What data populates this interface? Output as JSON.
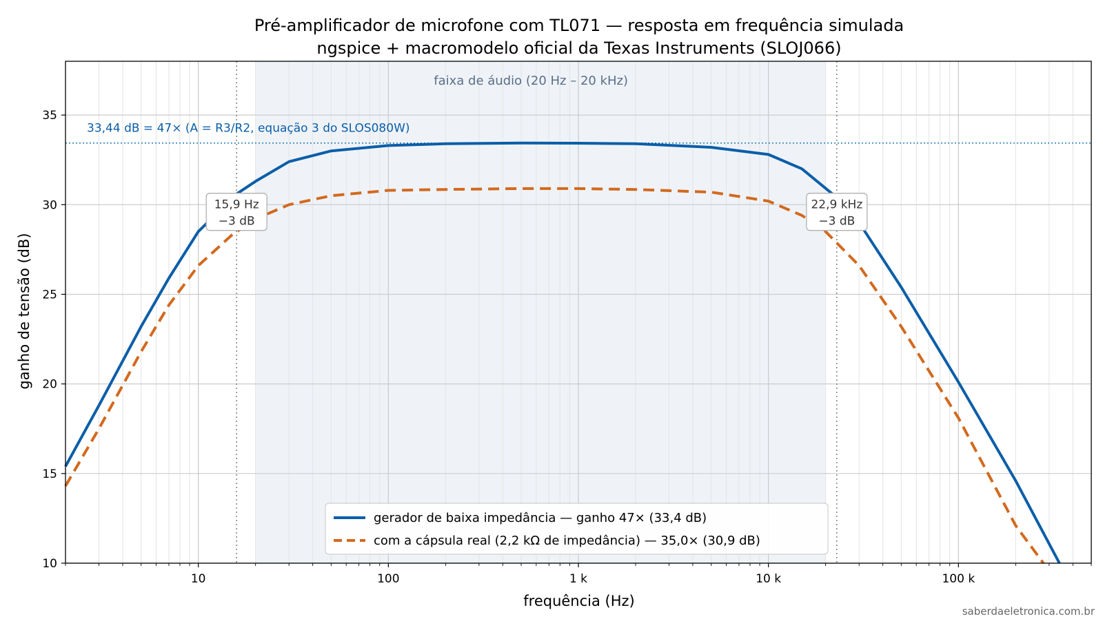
{
  "chart_data": {
    "type": "line",
    "title": "Pré-amplificador de microfone com TL071 — resposta em frequência simulada",
    "subtitle": "ngspice + macromodelo oficial da Texas Instruments (SLOJ066)",
    "xlabel": "frequência (Hz)",
    "ylabel": "ganho de tensão (dB)",
    "xscale": "log",
    "xlim": [
      2,
      500000
    ],
    "ylim": [
      10,
      38
    ],
    "grid": true,
    "x_ticks": [
      {
        "value": 10,
        "label": "10"
      },
      {
        "value": 100,
        "label": "100"
      },
      {
        "value": 1000,
        "label": "1 k"
      },
      {
        "value": 10000,
        "label": "10 k"
      },
      {
        "value": 100000,
        "label": "100 k"
      }
    ],
    "y_ticks": [
      {
        "value": 10,
        "label": "10"
      },
      {
        "value": 15,
        "label": "15"
      },
      {
        "value": 20,
        "label": "20"
      },
      {
        "value": 25,
        "label": "25"
      },
      {
        "value": 30,
        "label": "30"
      },
      {
        "value": 35,
        "label": "35"
      }
    ],
    "shaded_band": {
      "x_from": 20,
      "x_to": 20000,
      "label": "faixa de áudio (20 Hz – 20 kHz)",
      "color": "#dbe4f0"
    },
    "reference_line": {
      "y": 33.44,
      "label": "33,44 dB = 47×  (A = R3/R2, equação 3 do SLOS080W)",
      "color": "#1f77b4"
    },
    "cutoff_lines": [
      {
        "x": 15.9,
        "label_line1": "15,9 Hz",
        "label_line2": "−3 dB"
      },
      {
        "x": 22900,
        "label_line1": "22,9 kHz",
        "label_line2": "−3 dB"
      }
    ],
    "legend_position": "lower center",
    "series": [
      {
        "name": "gerador de baixa impedância — ganho 47× (33,4 dB)",
        "color": "#0b5ea8",
        "style": "solid",
        "x": [
          2,
          3,
          5,
          7,
          10,
          15.9,
          20,
          30,
          50,
          100,
          200,
          500,
          1000,
          2000,
          5000,
          10000,
          15000,
          22900,
          30000,
          50000,
          100000,
          200000,
          340000
        ],
        "y": [
          15.4,
          18.8,
          23.2,
          25.9,
          28.5,
          30.6,
          31.3,
          32.4,
          33.0,
          33.3,
          33.4,
          33.44,
          33.43,
          33.4,
          33.2,
          32.8,
          32.0,
          30.4,
          29.0,
          25.4,
          20.1,
          14.6,
          10.0
        ]
      },
      {
        "name": "com a cápsula real (2,2 kΩ de impedância) — 35,0× (30,9 dB)",
        "color": "#d2691e",
        "style": "dashed",
        "x": [
          2,
          3,
          5,
          7,
          10,
          15,
          20,
          30,
          50,
          100,
          200,
          500,
          1000,
          2000,
          5000,
          10000,
          15000,
          20000,
          30000,
          50000,
          100000,
          200000,
          280000
        ],
        "y": [
          14.3,
          17.5,
          21.8,
          24.4,
          26.6,
          28.3,
          29.2,
          30.0,
          30.5,
          30.8,
          30.85,
          30.9,
          30.9,
          30.85,
          30.7,
          30.2,
          29.4,
          28.5,
          26.6,
          23.2,
          18.1,
          12.1,
          10.0
        ]
      }
    ]
  },
  "footer": "saberdaeletronica.com.br"
}
